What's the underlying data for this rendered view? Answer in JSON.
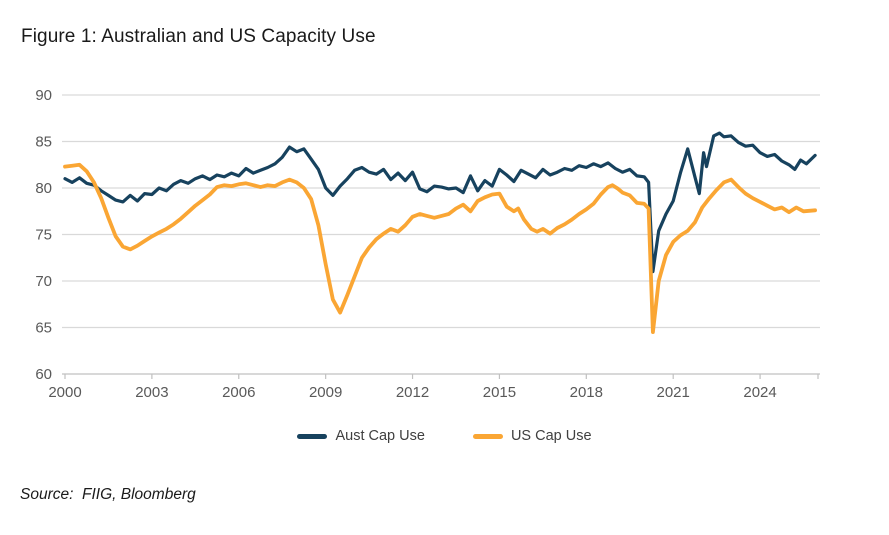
{
  "page": {
    "title": "Figure 1: Australian and US Capacity Use",
    "source": "Source:  FIIG, Bloomberg"
  },
  "colors": {
    "background": "#ffffff",
    "aust_line": "#17425e",
    "us_line": "#faa634",
    "grid": "#d9d9d9",
    "axis": "#c0c0c0",
    "tick_label": "#595959",
    "title_text": "#1a1a1a",
    "legend_text": "#404040"
  },
  "chart_data": {
    "type": "line",
    "title": "Figure 1: Australian and US Capacity Use",
    "xlabel": "",
    "ylabel": "",
    "x_range": [
      2000,
      2026
    ],
    "ylim": [
      60,
      90
    ],
    "x_ticks": [
      2000,
      2003,
      2006,
      2009,
      2012,
      2015,
      2018,
      2021,
      2024
    ],
    "y_ticks": [
      60,
      65,
      70,
      75,
      80,
      85,
      90
    ],
    "grid": "horizontal",
    "legend_position": "bottom",
    "series": [
      {
        "name": "Aust Cap Use",
        "color": "#17425e",
        "points": [
          [
            2000.0,
            81.0
          ],
          [
            2000.25,
            80.6
          ],
          [
            2000.5,
            81.1
          ],
          [
            2000.75,
            80.5
          ],
          [
            2001.0,
            80.3
          ],
          [
            2001.25,
            79.7
          ],
          [
            2001.5,
            79.2
          ],
          [
            2001.75,
            78.7
          ],
          [
            2002.0,
            78.5
          ],
          [
            2002.25,
            79.2
          ],
          [
            2002.5,
            78.6
          ],
          [
            2002.75,
            79.4
          ],
          [
            2003.0,
            79.3
          ],
          [
            2003.25,
            80.0
          ],
          [
            2003.5,
            79.7
          ],
          [
            2003.75,
            80.4
          ],
          [
            2004.0,
            80.8
          ],
          [
            2004.25,
            80.5
          ],
          [
            2004.5,
            81.0
          ],
          [
            2004.75,
            81.3
          ],
          [
            2005.0,
            80.9
          ],
          [
            2005.25,
            81.4
          ],
          [
            2005.5,
            81.2
          ],
          [
            2005.75,
            81.6
          ],
          [
            2006.0,
            81.3
          ],
          [
            2006.25,
            82.1
          ],
          [
            2006.5,
            81.6
          ],
          [
            2006.75,
            81.9
          ],
          [
            2007.0,
            82.2
          ],
          [
            2007.25,
            82.6
          ],
          [
            2007.5,
            83.3
          ],
          [
            2007.75,
            84.4
          ],
          [
            2008.0,
            83.9
          ],
          [
            2008.25,
            84.2
          ],
          [
            2008.5,
            83.1
          ],
          [
            2008.75,
            82.0
          ],
          [
            2009.0,
            80.0
          ],
          [
            2009.25,
            79.2
          ],
          [
            2009.5,
            80.2
          ],
          [
            2009.75,
            81.0
          ],
          [
            2010.0,
            81.9
          ],
          [
            2010.25,
            82.2
          ],
          [
            2010.5,
            81.7
          ],
          [
            2010.75,
            81.5
          ],
          [
            2011.0,
            82.0
          ],
          [
            2011.25,
            80.9
          ],
          [
            2011.5,
            81.6
          ],
          [
            2011.75,
            80.8
          ],
          [
            2012.0,
            81.7
          ],
          [
            2012.25,
            79.9
          ],
          [
            2012.5,
            79.6
          ],
          [
            2012.75,
            80.2
          ],
          [
            2013.0,
            80.1
          ],
          [
            2013.25,
            79.9
          ],
          [
            2013.5,
            80.0
          ],
          [
            2013.75,
            79.5
          ],
          [
            2014.0,
            81.3
          ],
          [
            2014.25,
            79.7
          ],
          [
            2014.5,
            80.8
          ],
          [
            2014.75,
            80.2
          ],
          [
            2015.0,
            82.0
          ],
          [
            2015.25,
            81.4
          ],
          [
            2015.5,
            80.7
          ],
          [
            2015.75,
            81.9
          ],
          [
            2016.0,
            81.5
          ],
          [
            2016.25,
            81.1
          ],
          [
            2016.5,
            82.0
          ],
          [
            2016.75,
            81.4
          ],
          [
            2017.0,
            81.7
          ],
          [
            2017.25,
            82.1
          ],
          [
            2017.5,
            81.9
          ],
          [
            2017.75,
            82.4
          ],
          [
            2018.0,
            82.2
          ],
          [
            2018.25,
            82.6
          ],
          [
            2018.5,
            82.3
          ],
          [
            2018.75,
            82.7
          ],
          [
            2019.0,
            82.1
          ],
          [
            2019.25,
            81.7
          ],
          [
            2019.5,
            82.0
          ],
          [
            2019.75,
            81.3
          ],
          [
            2020.0,
            81.2
          ],
          [
            2020.15,
            80.6
          ],
          [
            2020.3,
            71.0
          ],
          [
            2020.5,
            75.4
          ],
          [
            2020.75,
            77.2
          ],
          [
            2021.0,
            78.6
          ],
          [
            2021.25,
            81.6
          ],
          [
            2021.5,
            84.2
          ],
          [
            2021.75,
            81.2
          ],
          [
            2021.9,
            79.4
          ],
          [
            2022.05,
            83.8
          ],
          [
            2022.15,
            82.3
          ],
          [
            2022.4,
            85.6
          ],
          [
            2022.6,
            85.9
          ],
          [
            2022.75,
            85.5
          ],
          [
            2023.0,
            85.6
          ],
          [
            2023.25,
            84.9
          ],
          [
            2023.5,
            84.5
          ],
          [
            2023.75,
            84.6
          ],
          [
            2024.0,
            83.8
          ],
          [
            2024.25,
            83.4
          ],
          [
            2024.5,
            83.6
          ],
          [
            2024.75,
            82.9
          ],
          [
            2025.0,
            82.5
          ],
          [
            2025.2,
            82.0
          ],
          [
            2025.4,
            83.0
          ],
          [
            2025.6,
            82.6
          ],
          [
            2025.9,
            83.5
          ]
        ]
      },
      {
        "name": "US Cap Use",
        "color": "#faa634",
        "points": [
          [
            2000.0,
            82.3
          ],
          [
            2000.25,
            82.4
          ],
          [
            2000.5,
            82.5
          ],
          [
            2000.75,
            81.8
          ],
          [
            2001.0,
            80.6
          ],
          [
            2001.25,
            78.9
          ],
          [
            2001.5,
            76.8
          ],
          [
            2001.75,
            74.8
          ],
          [
            2002.0,
            73.7
          ],
          [
            2002.25,
            73.4
          ],
          [
            2002.5,
            73.8
          ],
          [
            2002.75,
            74.3
          ],
          [
            2003.0,
            74.8
          ],
          [
            2003.25,
            75.2
          ],
          [
            2003.5,
            75.6
          ],
          [
            2003.75,
            76.1
          ],
          [
            2004.0,
            76.7
          ],
          [
            2004.25,
            77.4
          ],
          [
            2004.5,
            78.1
          ],
          [
            2004.75,
            78.7
          ],
          [
            2005.0,
            79.3
          ],
          [
            2005.25,
            80.1
          ],
          [
            2005.5,
            80.3
          ],
          [
            2005.75,
            80.2
          ],
          [
            2006.0,
            80.4
          ],
          [
            2006.25,
            80.5
          ],
          [
            2006.5,
            80.3
          ],
          [
            2006.75,
            80.1
          ],
          [
            2007.0,
            80.3
          ],
          [
            2007.25,
            80.2
          ],
          [
            2007.5,
            80.6
          ],
          [
            2007.75,
            80.9
          ],
          [
            2008.0,
            80.6
          ],
          [
            2008.25,
            80.0
          ],
          [
            2008.5,
            78.8
          ],
          [
            2008.75,
            76.0
          ],
          [
            2009.0,
            71.8
          ],
          [
            2009.25,
            68.0
          ],
          [
            2009.5,
            66.6
          ],
          [
            2009.75,
            68.5
          ],
          [
            2010.0,
            70.5
          ],
          [
            2010.25,
            72.5
          ],
          [
            2010.5,
            73.6
          ],
          [
            2010.75,
            74.5
          ],
          [
            2011.0,
            75.1
          ],
          [
            2011.25,
            75.6
          ],
          [
            2011.5,
            75.3
          ],
          [
            2011.75,
            76.0
          ],
          [
            2012.0,
            76.9
          ],
          [
            2012.25,
            77.2
          ],
          [
            2012.5,
            77.0
          ],
          [
            2012.75,
            76.8
          ],
          [
            2013.0,
            77.0
          ],
          [
            2013.25,
            77.2
          ],
          [
            2013.5,
            77.8
          ],
          [
            2013.75,
            78.2
          ],
          [
            2014.0,
            77.5
          ],
          [
            2014.25,
            78.6
          ],
          [
            2014.5,
            79.0
          ],
          [
            2014.75,
            79.3
          ],
          [
            2015.0,
            79.4
          ],
          [
            2015.25,
            78.0
          ],
          [
            2015.5,
            77.5
          ],
          [
            2015.65,
            77.8
          ],
          [
            2015.85,
            76.6
          ],
          [
            2016.1,
            75.6
          ],
          [
            2016.3,
            75.3
          ],
          [
            2016.5,
            75.6
          ],
          [
            2016.75,
            75.1
          ],
          [
            2017.0,
            75.7
          ],
          [
            2017.25,
            76.1
          ],
          [
            2017.5,
            76.6
          ],
          [
            2017.75,
            77.2
          ],
          [
            2018.0,
            77.7
          ],
          [
            2018.25,
            78.3
          ],
          [
            2018.5,
            79.3
          ],
          [
            2018.75,
            80.1
          ],
          [
            2018.9,
            80.3
          ],
          [
            2019.1,
            79.9
          ],
          [
            2019.25,
            79.5
          ],
          [
            2019.5,
            79.2
          ],
          [
            2019.75,
            78.4
          ],
          [
            2020.0,
            78.3
          ],
          [
            2020.15,
            77.8
          ],
          [
            2020.3,
            64.5
          ],
          [
            2020.5,
            70.0
          ],
          [
            2020.75,
            72.8
          ],
          [
            2021.0,
            74.2
          ],
          [
            2021.25,
            74.9
          ],
          [
            2021.5,
            75.4
          ],
          [
            2021.75,
            76.3
          ],
          [
            2022.0,
            77.9
          ],
          [
            2022.25,
            78.9
          ],
          [
            2022.5,
            79.8
          ],
          [
            2022.75,
            80.6
          ],
          [
            2023.0,
            80.9
          ],
          [
            2023.25,
            80.1
          ],
          [
            2023.5,
            79.4
          ],
          [
            2023.75,
            78.9
          ],
          [
            2024.0,
            78.5
          ],
          [
            2024.25,
            78.1
          ],
          [
            2024.5,
            77.7
          ],
          [
            2024.75,
            77.9
          ],
          [
            2025.0,
            77.4
          ],
          [
            2025.25,
            77.9
          ],
          [
            2025.5,
            77.5
          ],
          [
            2025.9,
            77.6
          ]
        ]
      }
    ]
  }
}
